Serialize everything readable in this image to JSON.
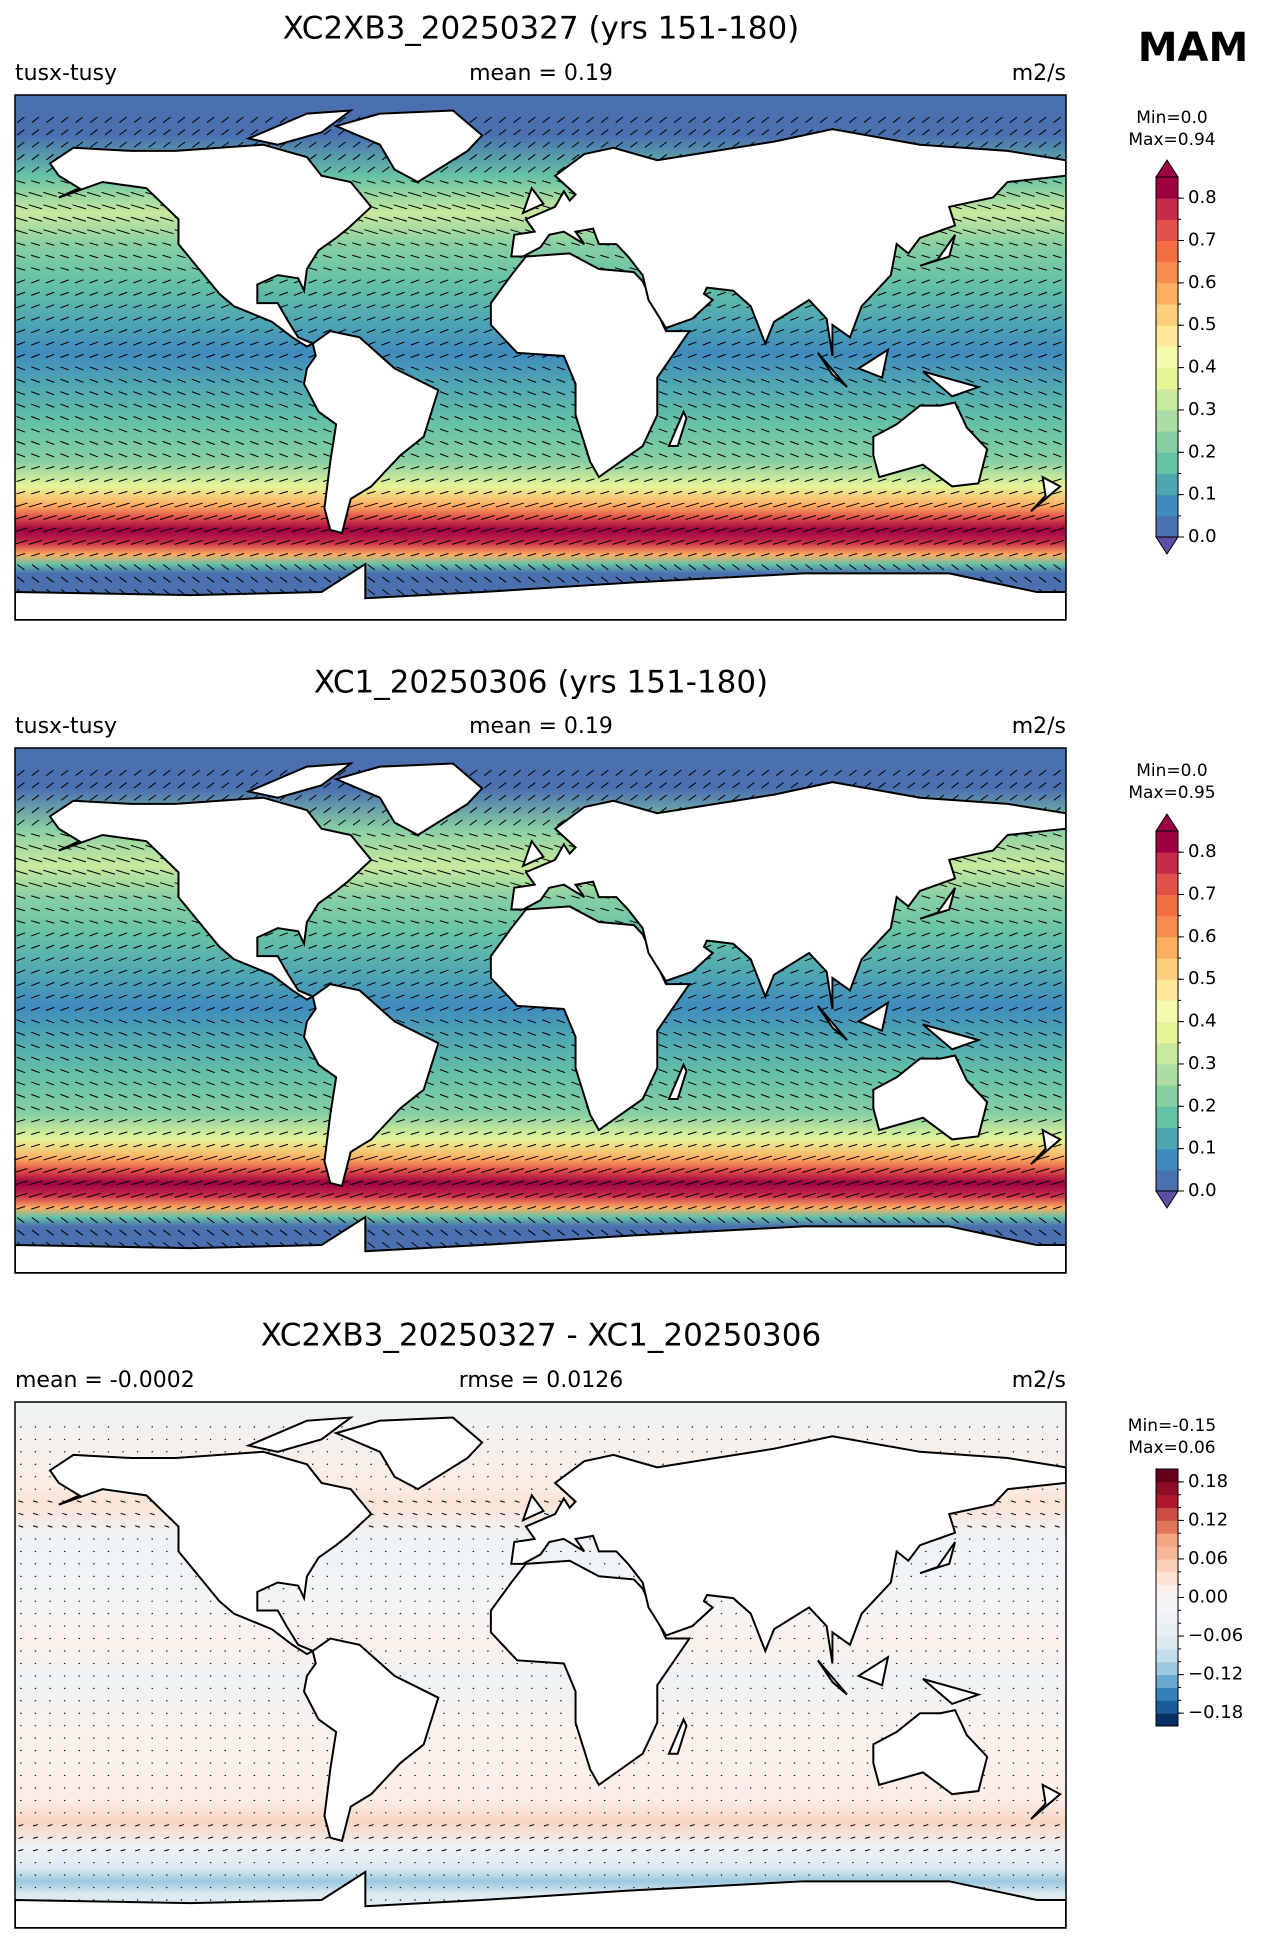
{
  "figure_label": "MAM",
  "panels": [
    {
      "title": "XC2XB3_20250327 (yrs 151-180)",
      "left_label": "tusx-tusy",
      "center_label": "mean = 0.19",
      "right_label": "m2/s",
      "min_label": "Min=0.0",
      "max_label": "Max=0.94",
      "colorbar": {
        "lim": [
          0,
          0.85
        ],
        "ticks": [
          {
            "value": 0,
            "label": "0.0"
          },
          0.1,
          0.2,
          0.3,
          0.4,
          0.5,
          0.6,
          0.7,
          0.8
        ],
        "colors": [
          "#4a70b0",
          "#3f8bbd",
          "#4fa6b3",
          "#66c2a5",
          "#88cfa4",
          "#abdda4",
          "#c9e99e",
          "#e6f598",
          "#f4faae",
          "#fee89a",
          "#fed07e",
          "#fdae61",
          "#f88d52",
          "#f46d43",
          "#e1504a",
          "#c72b4a",
          "#9e0142"
        ],
        "under_color": "#5e4fa2",
        "over_color": "#9e0142"
      }
    },
    {
      "title": "XC1_20250306 (yrs 151-180)",
      "left_label": "tusx-tusy",
      "center_label": "mean = 0.19",
      "right_label": "m2/s",
      "min_label": "Min=0.0",
      "max_label": "Max=0.95",
      "colorbar": {
        "lim": [
          0,
          0.85
        ],
        "ticks": [
          {
            "value": 0,
            "label": "0.0"
          },
          0.1,
          0.2,
          0.3,
          0.4,
          0.5,
          0.6,
          0.7,
          0.8
        ],
        "colors": [
          "#4a70b0",
          "#3f8bbd",
          "#4fa6b3",
          "#66c2a5",
          "#88cfa4",
          "#abdda4",
          "#c9e99e",
          "#e6f598",
          "#f4faae",
          "#fee89a",
          "#fed07e",
          "#fdae61",
          "#f88d52",
          "#f46d43",
          "#e1504a",
          "#c72b4a",
          "#9e0142"
        ],
        "under_color": "#5e4fa2",
        "over_color": "#9e0142"
      }
    },
    {
      "title": "XC2XB3_20250327 - XC1_20250306",
      "left_label": "mean = -0.0002",
      "center_label": "rmse = 0.0126",
      "right_label": "m2/s",
      "min_label": "Min=-0.15",
      "max_label": "Max=0.06",
      "colorbar": {
        "lim": [
          -0.2,
          0.2
        ],
        "ticks": [
          {
            "value": -0.18,
            "label": "−0.18"
          },
          {
            "value": -0.12,
            "label": "−0.12"
          },
          {
            "value": -0.06,
            "label": "−0.06"
          },
          {
            "value": 0,
            "label": "0.00"
          },
          0.06,
          0.12,
          0.18
        ],
        "colors": [
          "#053061",
          "#1b5a9a",
          "#3480b9",
          "#68a9cf",
          "#9cc9e0",
          "#c3ddec",
          "#dbe9f1",
          "#e8f0f4",
          "#eef3f5",
          "#f3f5f6",
          "#fbf1ec",
          "#fce3d6",
          "#fbd0b9",
          "#f7b799",
          "#f4a582",
          "#e0765e",
          "#cc4c44",
          "#b2182b",
          "#8c0d25",
          "#67001f"
        ]
      }
    }
  ]
}
